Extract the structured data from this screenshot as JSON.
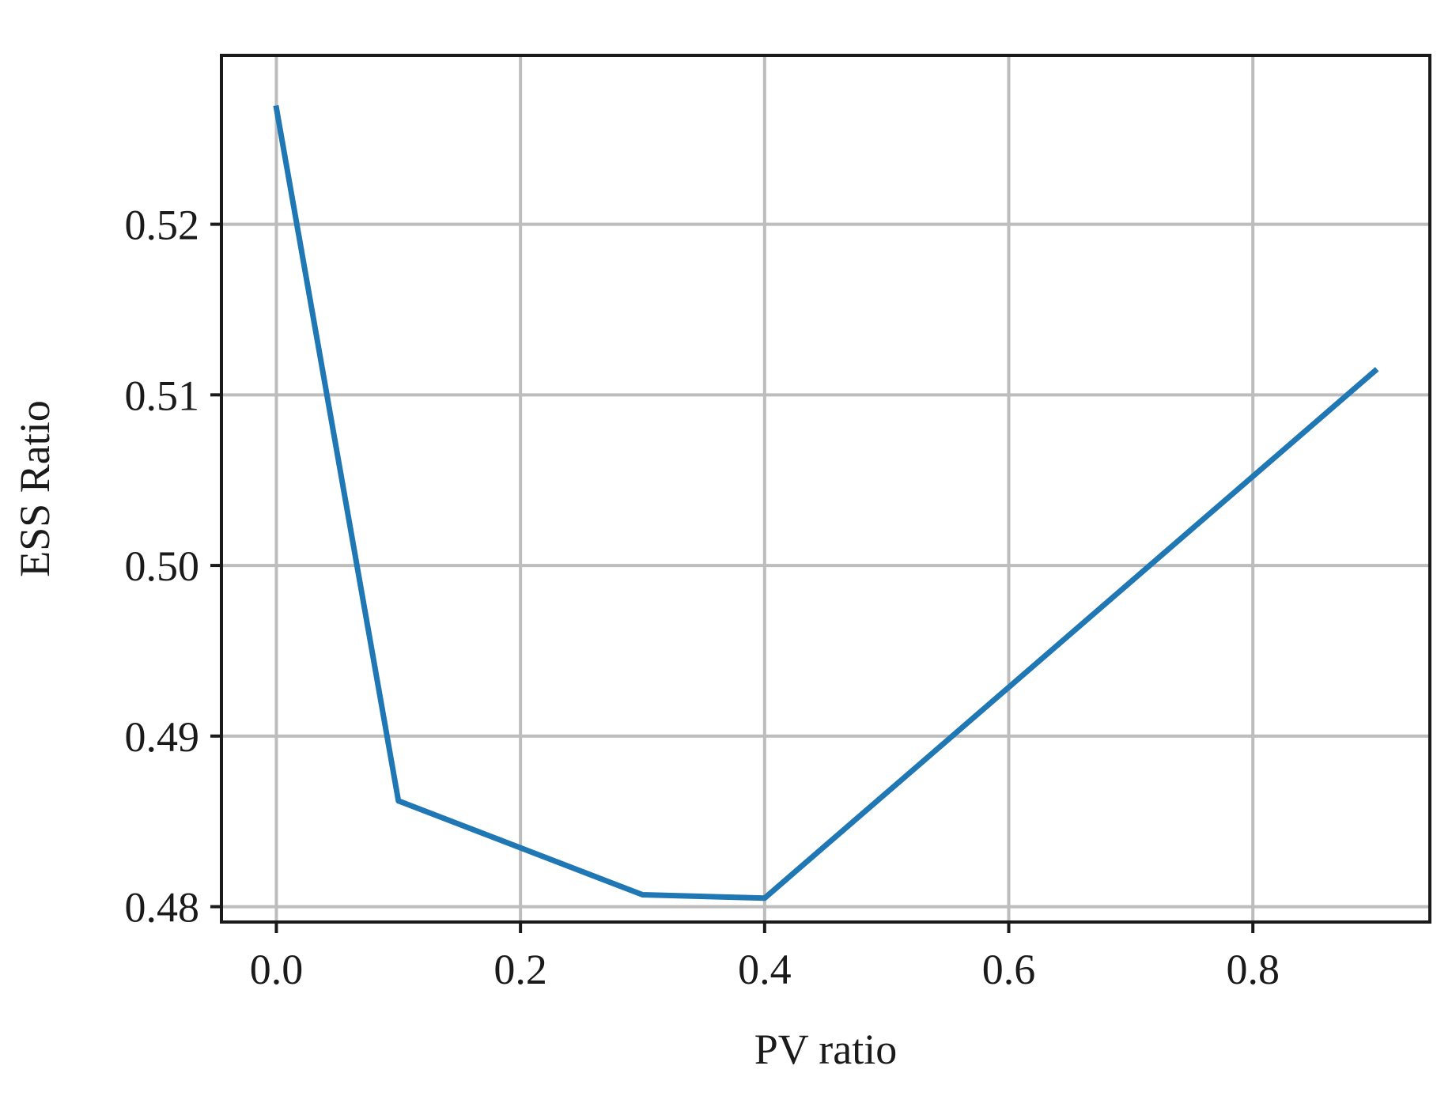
{
  "chart_data": {
    "type": "line",
    "title": "",
    "xlabel": "PV ratio",
    "ylabel": "ESS Ratio",
    "xlim": [
      -0.045,
      0.945
    ],
    "ylim": [
      0.4791,
      0.5299
    ],
    "xticks": [
      0.0,
      0.2,
      0.4,
      0.6,
      0.8
    ],
    "xtick_labels": [
      "0.0",
      "0.2",
      "0.4",
      "0.6",
      "0.8"
    ],
    "yticks": [
      0.48,
      0.49,
      0.5,
      0.51,
      0.52
    ],
    "ytick_labels": [
      "0.48",
      "0.49",
      "0.50",
      "0.51",
      "0.52"
    ],
    "grid": true,
    "series": [
      {
        "color": "#1f77b4",
        "x": [
          0.0,
          0.1,
          0.3,
          0.4,
          0.9
        ],
        "y": [
          0.5268,
          0.4862,
          0.4807,
          0.4805,
          0.5114
        ]
      }
    ]
  }
}
